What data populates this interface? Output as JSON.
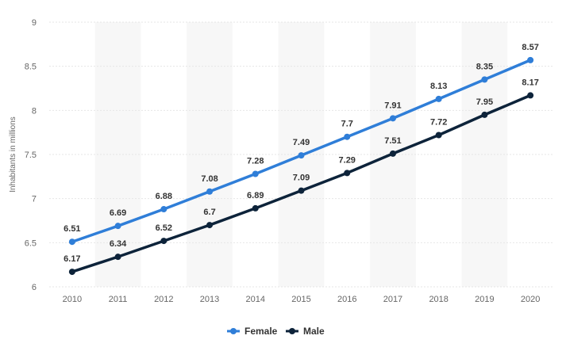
{
  "chart_data": {
    "type": "line",
    "title": "",
    "xlabel": "",
    "ylabel": "Inhabitants in millions",
    "x": [
      "2010",
      "2011",
      "2012",
      "2013",
      "2014",
      "2015",
      "2016",
      "2017",
      "2018",
      "2019",
      "2020"
    ],
    "ylim": [
      6,
      9
    ],
    "yticks": [
      "6",
      "6.5",
      "7",
      "7.5",
      "8",
      "8.5",
      "9"
    ],
    "grid": true,
    "legend_position": "bottom-center",
    "series": [
      {
        "name": "Female",
        "color": "#2f7ed8",
        "values": [
          6.51,
          6.69,
          6.88,
          7.08,
          7.28,
          7.49,
          7.7,
          7.91,
          8.13,
          8.35,
          8.57
        ],
        "labels": [
          "6.51",
          "6.69",
          "6.88",
          "7.08",
          "7.28",
          "7.49",
          "7.7",
          "7.91",
          "8.13",
          "8.35",
          "8.57"
        ]
      },
      {
        "name": "Male",
        "color": "#0d233a",
        "values": [
          6.17,
          6.34,
          6.52,
          6.7,
          6.89,
          7.09,
          7.29,
          7.51,
          7.72,
          7.95,
          8.17
        ],
        "labels": [
          "6.17",
          "6.34",
          "6.52",
          "6.7",
          "6.89",
          "7.09",
          "7.29",
          "7.51",
          "7.72",
          "7.95",
          "8.17"
        ]
      }
    ]
  }
}
